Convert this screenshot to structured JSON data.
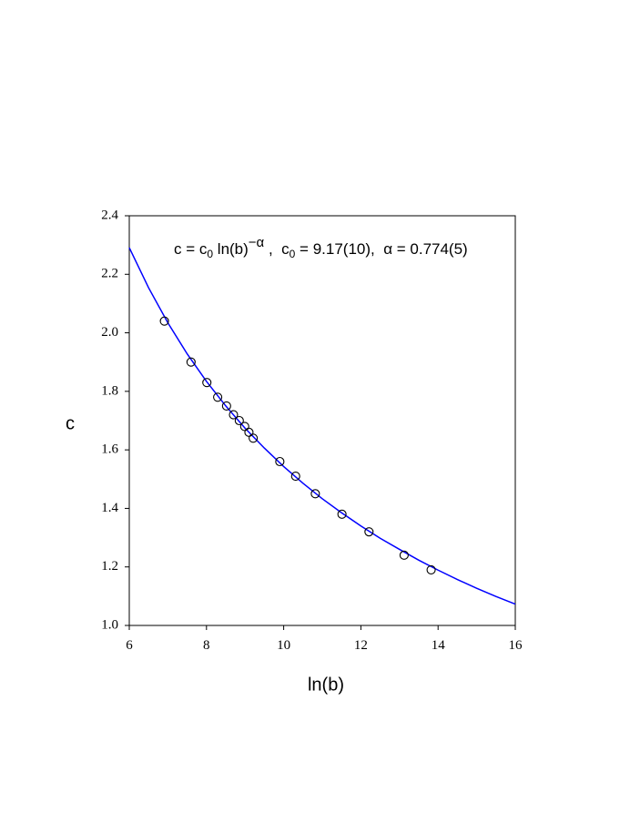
{
  "chart_data": {
    "type": "scatter",
    "x_label": "ln(b)",
    "y_label": "c",
    "annotation": [
      "c = c",
      "0",
      " ln(b)",
      "−α",
      " ,  c",
      "0",
      " = 9.17(10),  α = 0.774(5)"
    ],
    "xlim": [
      6,
      16
    ],
    "ylim": [
      1.0,
      2.4
    ],
    "xticks": [
      6,
      8,
      10,
      12,
      14,
      16
    ],
    "yticks": [
      {
        "value": 1.0,
        "label": "1.0"
      },
      1.2,
      1.4,
      1.6,
      1.8,
      {
        "value": 2.0,
        "label": "2.0"
      },
      2.2,
      2.4
    ],
    "grid": false,
    "series": [
      {
        "type": "line",
        "color": "#0000ff",
        "x": [
          6,
          6.5,
          7,
          7.5,
          8,
          8.5,
          9,
          9.5,
          10,
          10.5,
          11,
          11.5,
          12,
          12.5,
          13,
          13.5,
          14,
          14.5,
          15,
          15.5,
          16
        ],
        "values": [
          2.291,
          2.154,
          2.034,
          1.928,
          1.834,
          1.75,
          1.674,
          1.606,
          1.543,
          1.486,
          1.433,
          1.385,
          1.34,
          1.298,
          1.26,
          1.223,
          1.189,
          1.157,
          1.127,
          1.099,
          1.073
        ]
      },
      {
        "type": "scatter",
        "color": "#000000",
        "x": [
          6.91,
          7.6,
          8.01,
          8.29,
          8.52,
          8.7,
          8.85,
          8.99,
          9.1,
          9.21,
          9.9,
          10.31,
          10.82,
          11.51,
          12.21,
          13.12,
          13.82
        ],
        "values": [
          2.04,
          1.9,
          1.83,
          1.78,
          1.75,
          1.72,
          1.7,
          1.68,
          1.66,
          1.64,
          1.56,
          1.51,
          1.45,
          1.38,
          1.32,
          1.24,
          1.19
        ]
      }
    ]
  }
}
